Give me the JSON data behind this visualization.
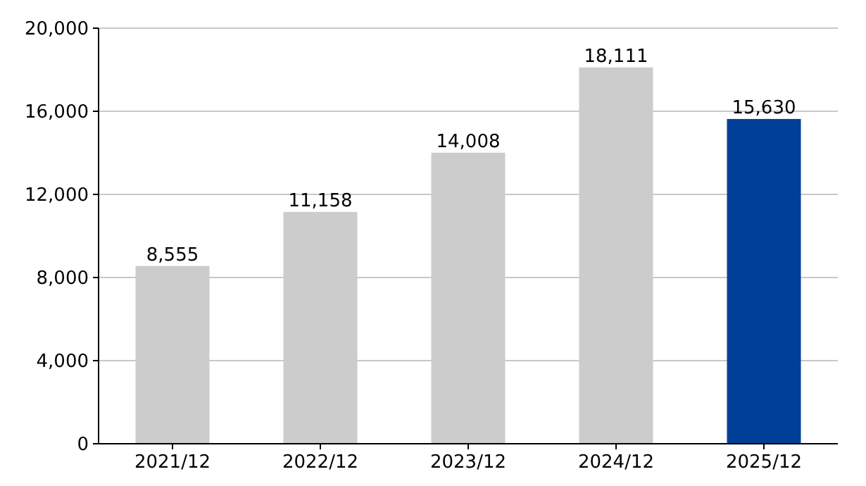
{
  "chart_data": {
    "type": "bar",
    "categories": [
      "2021/12",
      "2022/12",
      "2023/12",
      "2024/12",
      "2025/12"
    ],
    "values": [
      8555,
      11158,
      14008,
      18111,
      15630
    ],
    "colors": [
      "#cccccc",
      "#cccccc",
      "#cccccc",
      "#cccccc",
      "#003f98"
    ],
    "value_labels": [
      "8,555",
      "11,158",
      "14,008",
      "18,111",
      "15,630"
    ],
    "ylim": [
      0,
      20000
    ],
    "yticks": [
      0,
      {
        "value": 4000,
        "label": "4,000"
      },
      {
        "value": 8000,
        "label": "8,000"
      },
      {
        "value": 12000,
        "label": "12,000"
      },
      {
        "value": 16000,
        "label": "16,000"
      },
      {
        "value": 20000,
        "label": "20,000"
      }
    ],
    "grid": "y"
  }
}
